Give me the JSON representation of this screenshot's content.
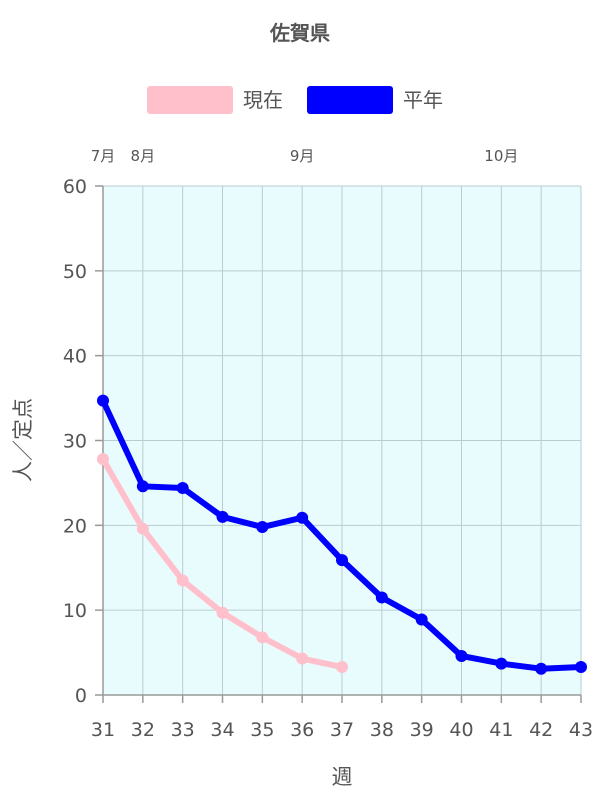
{
  "chart_data": {
    "type": "line",
    "title": "佐賀県",
    "xlabel": "週",
    "ylabel": "人／定点",
    "x": [
      31,
      32,
      33,
      34,
      35,
      36,
      37,
      38,
      39,
      40,
      41,
      42,
      43
    ],
    "x_tick_labels": [
      "31",
      "32",
      "33",
      "34",
      "35",
      "36",
      "37",
      "38",
      "39",
      "40",
      "41",
      "42",
      "43"
    ],
    "xlim": [
      31,
      43
    ],
    "ylim": [
      0,
      60
    ],
    "y_ticks": [
      0,
      10,
      20,
      30,
      40,
      50,
      60
    ],
    "y_tick_labels": [
      "0",
      "10",
      "20",
      "30",
      "40",
      "50",
      "60"
    ],
    "month_labels": [
      {
        "label": "7月",
        "week": 31
      },
      {
        "label": "8月",
        "week": 32
      },
      {
        "label": "9月",
        "week": 36
      },
      {
        "label": "10月",
        "week": 41
      }
    ],
    "grid": true,
    "legend_position": "top-center",
    "plot_background": "#e8fcfd",
    "series": [
      {
        "name": "現在",
        "color": "#ffc0cb",
        "x": [
          31,
          32,
          33,
          34,
          35,
          36,
          37
        ],
        "values": [
          27.8,
          19.6,
          13.5,
          9.7,
          6.8,
          4.3,
          3.3
        ]
      },
      {
        "name": "平年",
        "color": "#0000ff",
        "x": [
          31,
          32,
          33,
          34,
          35,
          36,
          37,
          38,
          39,
          40,
          41,
          42,
          43
        ],
        "values": [
          34.7,
          24.6,
          24.4,
          21.0,
          19.8,
          20.9,
          15.9,
          11.5,
          8.9,
          4.6,
          3.7,
          3.1,
          3.3
        ]
      }
    ]
  }
}
